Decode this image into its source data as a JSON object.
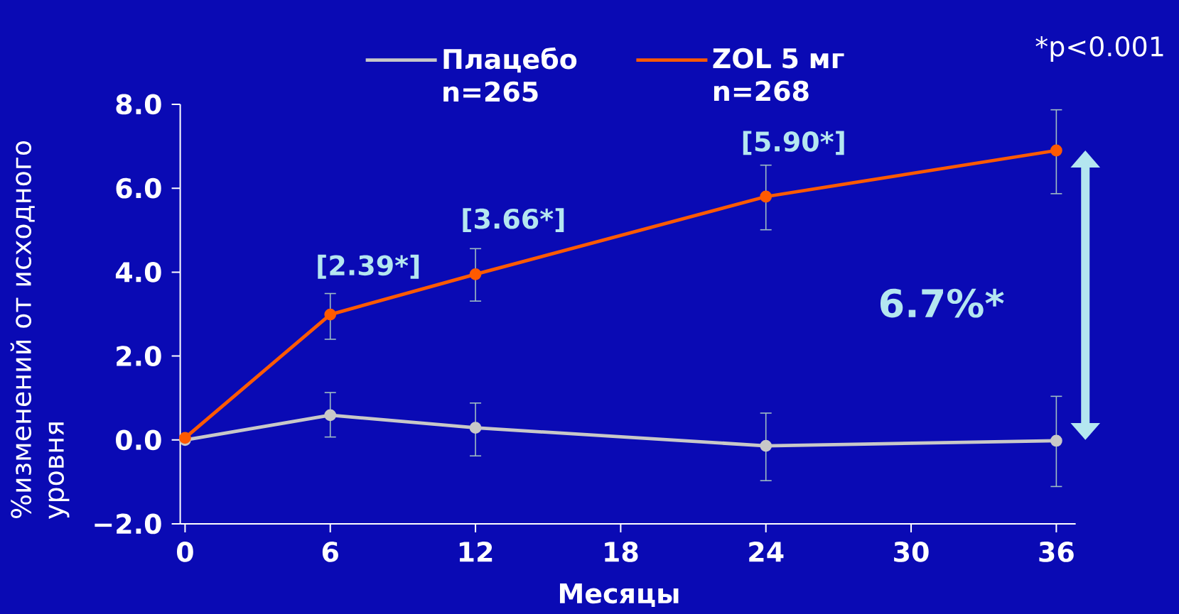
{
  "chart_data": {
    "type": "line",
    "xlabel": "Месяцы",
    "ylabel": "%изменений от исходного уровня",
    "x": [
      0,
      6,
      12,
      24,
      36
    ],
    "series": [
      {
        "name": "Плацебо n=265",
        "color": "#c8c8c8",
        "values": [
          0.0,
          0.59,
          0.29,
          -0.14,
          -0.02
        ],
        "errors": [
          null,
          [
            0.07,
            1.13
          ],
          [
            -0.38,
            0.88
          ],
          [
            -0.97,
            0.64
          ],
          [
            -1.11,
            1.04
          ]
        ]
      },
      {
        "name": "ZOL 5 мг n=268",
        "color": "#ff5a00",
        "values": [
          0.05,
          2.99,
          3.95,
          5.8,
          6.9
        ],
        "errors": [
          null,
          [
            2.4,
            3.49
          ],
          [
            3.31,
            4.56
          ],
          [
            5.01,
            6.55
          ],
          [
            5.87,
            7.87
          ]
        ]
      }
    ],
    "xlim": [
      -0.2,
      36.8
    ],
    "ylim": [
      -2,
      8
    ],
    "xticks": [
      0,
      6,
      12,
      18,
      24,
      30,
      36
    ],
    "yticks": [
      {
        "value": -2,
        "label": "−2.0"
      },
      {
        "value": 0,
        "label": "0.0"
      },
      {
        "value": 2,
        "label": "2.0"
      },
      {
        "value": 4,
        "label": "4.0"
      },
      {
        "value": 6,
        "label": "6.0"
      },
      {
        "value": 8,
        "label": "8.0"
      }
    ],
    "annotations": [
      "[2.39*]",
      "[3.66*]",
      "[5.90*]",
      "6.7%*",
      "*p<0.001"
    ],
    "legend": "top",
    "marker": "circle",
    "line_style": "solid",
    "grid": false
  }
}
